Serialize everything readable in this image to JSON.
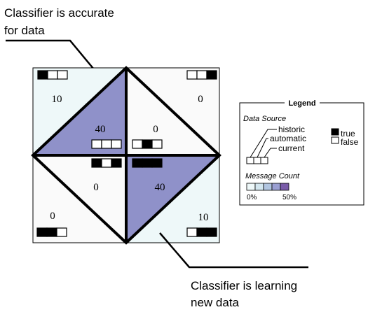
{
  "callouts": {
    "top": {
      "line1": "Classifier is accurate",
      "line2": "for data"
    },
    "bottom": {
      "line1": "Classifier is learning",
      "line2": "new data"
    }
  },
  "regions": [
    {
      "id": "top-left-corner",
      "count": "10",
      "pattern": [
        true,
        false,
        false
      ],
      "fill": "#eef8f9"
    },
    {
      "id": "top-right-corner",
      "count": "0",
      "pattern": [
        false,
        false,
        true
      ],
      "fill": "#fafafa"
    },
    {
      "id": "bottom-left-corner",
      "count": "0",
      "pattern": [
        true,
        true,
        false
      ],
      "fill": "#fafafa"
    },
    {
      "id": "bottom-right-corner",
      "count": "10",
      "pattern": [
        false,
        true,
        true
      ],
      "fill": "#eef8f9"
    },
    {
      "id": "upper-left-inner",
      "count": "40",
      "pattern": [
        false,
        false,
        false
      ],
      "fill": "#8f91c9"
    },
    {
      "id": "upper-right-inner",
      "count": "0",
      "pattern": [
        false,
        true,
        false
      ],
      "fill": "#fafafa"
    },
    {
      "id": "lower-left-inner",
      "count": "0",
      "pattern": [
        true,
        false,
        true
      ],
      "fill": "#fafafa"
    },
    {
      "id": "lower-right-inner",
      "count": "40",
      "pattern": [
        true,
        true,
        true
      ],
      "fill": "#8f91c9"
    }
  ],
  "legend": {
    "title": "Legend",
    "data_source_label": "Data Source",
    "sources": [
      "historic",
      "automatic",
      "current"
    ],
    "true_label": "true",
    "false_label": "false",
    "message_count_label": "Message Count",
    "scale_min": "0%",
    "scale_max": "50%",
    "scale_colors": [
      "#eef8f9",
      "#d3e6ef",
      "#b1c5e0",
      "#9a9fd2",
      "#7a5ca9"
    ]
  }
}
